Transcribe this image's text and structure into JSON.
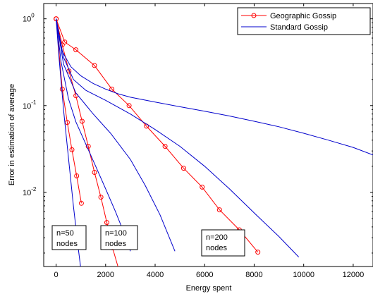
{
  "chart_data": {
    "type": "line",
    "xlabel": "Energy spent",
    "ylabel": "Error in estimation of average",
    "xlim": [
      -500,
      12800
    ],
    "ylim": [
      0.0014,
      1.5
    ],
    "y_scale": "log",
    "grid": false,
    "legend_position": "top-right",
    "x_ticks": [
      0,
      2000,
      4000,
      6000,
      8000,
      10000,
      12000
    ],
    "y_ticks": [
      {
        "value": 1,
        "base": "10",
        "exp": "0"
      },
      {
        "value": 0.1,
        "base": "10",
        "exp": "-1"
      },
      {
        "value": 0.01,
        "base": "10",
        "exp": "-2"
      }
    ],
    "series": [
      {
        "name": "Geographic Gossip",
        "color": "#ff0000",
        "marker": "circle",
        "curves": [
          {
            "x": [
              0,
              250,
              450,
              640,
              830,
              1020
            ],
            "y": [
              1.0,
              0.155,
              0.064,
              0.031,
              0.0155,
              0.0075
            ]
          },
          {
            "x": [
              0,
              250,
              520,
              800,
              1050,
              1300,
              1550,
              1810,
              2050,
              2280,
              2530
            ],
            "y": [
              1.0,
              0.5,
              0.25,
              0.13,
              0.066,
              0.034,
              0.017,
              0.0088,
              0.0045,
              0.0023,
              0.0013
            ]
          },
          {
            "x": [
              0,
              350,
              800,
              1550,
              2250,
              2950,
              3650,
              4400,
              5150,
              5900,
              6600,
              7400,
              8150
            ],
            "y": [
              1.0,
              0.54,
              0.44,
              0.29,
              0.155,
              0.1,
              0.058,
              0.034,
              0.019,
              0.0115,
              0.0063,
              0.0037,
              0.00205
            ]
          }
        ]
      },
      {
        "name": "Standard Gossip",
        "color": "#0000cc",
        "marker": "none",
        "curves": [
          {
            "x": [
              0,
              120,
              300,
              500,
              700,
              900,
              1000
            ],
            "y": [
              1.0,
              0.35,
              0.09,
              0.025,
              0.007,
              0.0022,
              0.0013
            ]
          },
          {
            "x": [
              0,
              200,
              500,
              800,
              1200,
              1600,
              2000,
              2400,
              2800,
              3000
            ],
            "y": [
              1.0,
              0.32,
              0.12,
              0.065,
              0.036,
              0.02,
              0.011,
              0.006,
              0.0031,
              0.0021
            ]
          },
          {
            "x": [
              0,
              300,
              800,
              1500,
              2200,
              3000,
              3600,
              4200,
              4800
            ],
            "y": [
              1.0,
              0.3,
              0.14,
              0.08,
              0.048,
              0.024,
              0.012,
              0.0055,
              0.0021
            ]
          },
          {
            "x": [
              0,
              300,
              700,
              1200,
              2000,
              3000,
              4000,
              5000,
              6000,
              7000,
              8000,
              9000,
              9800
            ],
            "y": [
              1.0,
              0.36,
              0.2,
              0.15,
              0.115,
              0.08,
              0.053,
              0.034,
              0.02,
              0.011,
              0.0058,
              0.0031,
              0.0018
            ]
          },
          {
            "x": [
              0,
              250,
              600,
              1000,
              1500,
              2000,
              2500,
              3000,
              4000,
              5000,
              6000,
              7000,
              8000,
              9000,
              10000,
              11000,
              12000,
              12800
            ],
            "y": [
              1.0,
              0.42,
              0.28,
              0.22,
              0.18,
              0.155,
              0.137,
              0.125,
              0.11,
              0.097,
              0.086,
              0.076,
              0.066,
              0.057,
              0.048,
              0.04,
              0.033,
              0.027
            ]
          }
        ]
      }
    ],
    "annotations": [
      {
        "lines": [
          "n=50",
          "nodes"
        ],
        "x": 0.018,
        "x2": 0.02
      },
      {
        "lines": [
          "n=100",
          "nodes"
        ],
        "x": 0.11,
        "x2": 0.14
      },
      {
        "lines": [
          "n=200",
          "nodes"
        ],
        "x": 0.3,
        "x2": 0.41
      }
    ]
  }
}
